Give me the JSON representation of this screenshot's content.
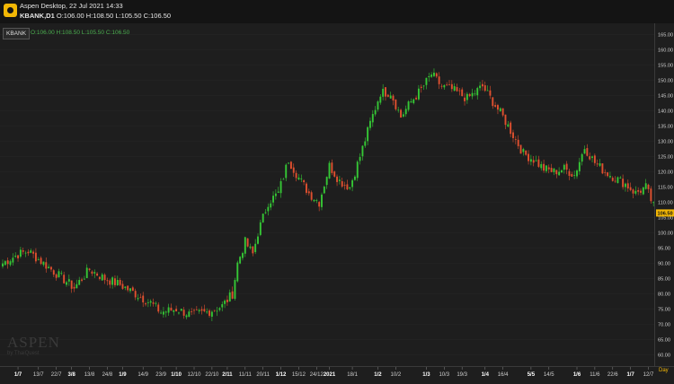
{
  "window": {
    "title": "Aspen Desktop, 22 Jul 2021 14:33",
    "ohlc_prefix": "KBANK,D1",
    "ohlc_values": "O:106.00 H:108.50 L:105.50 C:106.50"
  },
  "chart": {
    "symbol": "KBANK",
    "legend": "O:106.00 H:108.50 L:105.50 C:106.50",
    "period_label": "Day",
    "watermark": "ASPEN",
    "watermark_sub": "by ThaiQuest"
  },
  "colors": {
    "up": "#35c735",
    "down": "#e0502f",
    "last_price_bg": "#f2b705",
    "background": "#1e1e1e"
  },
  "chart_data": {
    "type": "candlestick",
    "symbol": "KBANK",
    "ylim": [
      57.5,
      167.5
    ],
    "y_ticks": [
      "165.00",
      "160.00",
      "155.00",
      "150.00",
      "145.00",
      "140.00",
      "135.00",
      "130.00",
      "125.00",
      "120.00",
      "115.00",
      "110.00",
      "105.00",
      "100.00",
      "95.00",
      "90.00",
      "85.00",
      "80.00",
      "75.00",
      "70.00",
      "65.00",
      "60.00"
    ],
    "last_price": "106.50",
    "x_ticks": [
      {
        "label": "1/7",
        "i": 6,
        "month": true
      },
      {
        "label": "13/7",
        "i": 14
      },
      {
        "label": "22/7",
        "i": 21
      },
      {
        "label": "3/8",
        "i": 27,
        "month": true
      },
      {
        "label": "13/8",
        "i": 34
      },
      {
        "label": "24/8",
        "i": 41
      },
      {
        "label": "1/9",
        "i": 47,
        "month": true
      },
      {
        "label": "14/9",
        "i": 55
      },
      {
        "label": "23/9",
        "i": 62
      },
      {
        "label": "1/10",
        "i": 68,
        "month": true
      },
      {
        "label": "12/10",
        "i": 75
      },
      {
        "label": "22/10",
        "i": 82
      },
      {
        "label": "2/11",
        "i": 88,
        "month": true
      },
      {
        "label": "11/11",
        "i": 95
      },
      {
        "label": "20/11",
        "i": 102
      },
      {
        "label": "1/12",
        "i": 109,
        "month": true
      },
      {
        "label": "15/12",
        "i": 116
      },
      {
        "label": "24/12",
        "i": 123
      },
      {
        "label": "2021",
        "i": 128,
        "month": true
      },
      {
        "label": "18/1",
        "i": 137
      },
      {
        "label": "1/2",
        "i": 147,
        "month": true
      },
      {
        "label": "10/2",
        "i": 154
      },
      {
        "label": "1/3",
        "i": 166,
        "month": true
      },
      {
        "label": "10/3",
        "i": 173
      },
      {
        "label": "19/3",
        "i": 180
      },
      {
        "label": "1/4",
        "i": 189,
        "month": true
      },
      {
        "label": "16/4",
        "i": 196
      },
      {
        "label": "5/5",
        "i": 207,
        "month": true
      },
      {
        "label": "14/5",
        "i": 214
      },
      {
        "label": "1/6",
        "i": 225,
        "month": true
      },
      {
        "label": "11/6",
        "i": 232
      },
      {
        "label": "22/6",
        "i": 239
      },
      {
        "label": "1/7",
        "i": 246,
        "month": true
      },
      {
        "label": "12/7",
        "i": 253
      }
    ],
    "key_closes": [
      [
        0,
        90
      ],
      [
        6,
        93
      ],
      [
        10,
        94
      ],
      [
        16,
        90
      ],
      [
        22,
        86
      ],
      [
        28,
        82
      ],
      [
        34,
        88
      ],
      [
        40,
        85
      ],
      [
        46,
        83
      ],
      [
        52,
        80
      ],
      [
        58,
        77
      ],
      [
        62,
        74
      ],
      [
        68,
        75
      ],
      [
        74,
        73
      ],
      [
        80,
        74
      ],
      [
        86,
        76
      ],
      [
        90,
        80
      ],
      [
        92,
        90
      ],
      [
        95,
        97
      ],
      [
        98,
        93
      ],
      [
        100,
        100
      ],
      [
        104,
        110
      ],
      [
        108,
        113
      ],
      [
        112,
        124
      ],
      [
        116,
        118
      ],
      [
        120,
        113
      ],
      [
        124,
        110
      ],
      [
        128,
        122
      ],
      [
        132,
        117
      ],
      [
        136,
        115
      ],
      [
        140,
        125
      ],
      [
        144,
        136
      ],
      [
        148,
        146
      ],
      [
        152,
        146
      ],
      [
        156,
        138
      ],
      [
        160,
        143
      ],
      [
        164,
        147
      ],
      [
        168,
        152
      ],
      [
        172,
        148
      ],
      [
        176,
        147
      ],
      [
        182,
        144
      ],
      [
        188,
        148
      ],
      [
        192,
        143
      ],
      [
        196,
        138
      ],
      [
        200,
        132
      ],
      [
        204,
        126
      ],
      [
        208,
        124
      ],
      [
        212,
        121
      ],
      [
        216,
        120
      ],
      [
        220,
        121
      ],
      [
        224,
        119
      ],
      [
        228,
        128
      ],
      [
        232,
        123
      ],
      [
        236,
        120
      ],
      [
        240,
        118
      ],
      [
        244,
        116
      ],
      [
        248,
        113
      ],
      [
        252,
        115
      ],
      [
        256,
        106.5
      ]
    ],
    "seed": 7
  }
}
